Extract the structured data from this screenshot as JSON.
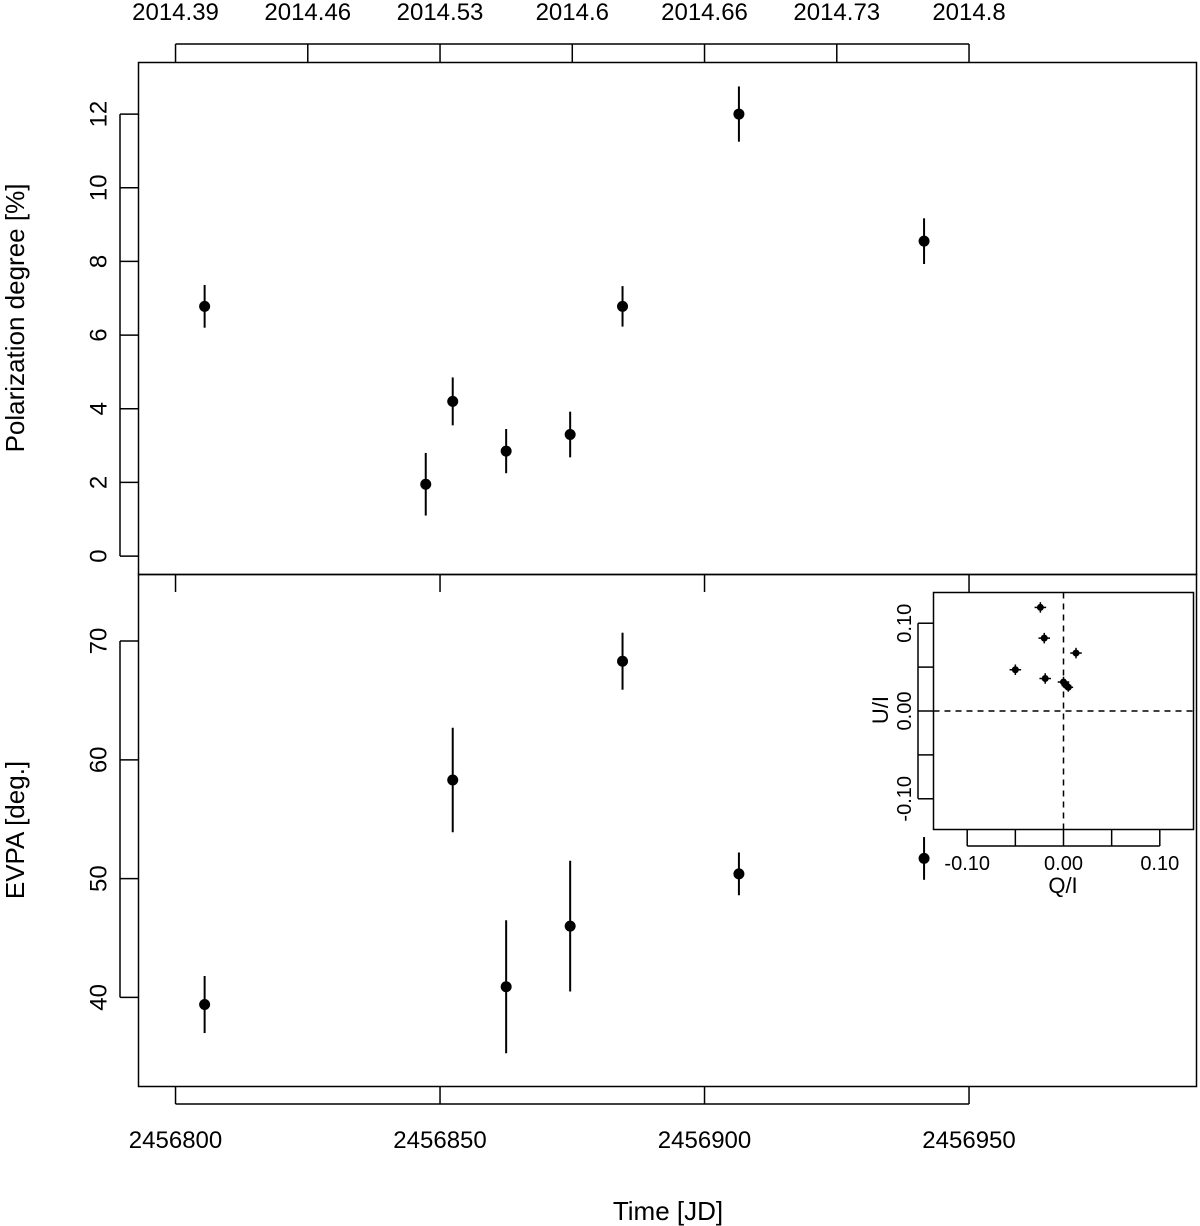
{
  "chart_data": [
    {
      "id": "polarization",
      "type": "scatter",
      "xlabel": "Time [JD]",
      "ylabel": "Polarization degree [%]",
      "xlim": [
        2456793,
        2456993
      ],
      "ylim": [
        -0.5,
        13.4
      ],
      "x_ticks": [
        "2456800",
        "2456850",
        "2456900",
        "2456950"
      ],
      "x_tick_values": [
        2456800,
        2456850,
        2456900,
        2456950
      ],
      "top_ticks": [
        "2014.39",
        "2014.46",
        "2014.53",
        "2014.6",
        "2014.66",
        "2014.73",
        "2014.8"
      ],
      "top_tick_values": [
        2456800,
        2456825,
        2456850,
        2456875,
        2456900,
        2456925,
        2456950
      ],
      "y_ticks": [
        "0",
        "2",
        "4",
        "6",
        "8",
        "10",
        "12"
      ],
      "y_tick_values": [
        0,
        2,
        4,
        6,
        8,
        10,
        12
      ],
      "grid": false,
      "points": [
        {
          "x": 2456805.5,
          "y": 6.78,
          "err": 0.58
        },
        {
          "x": 2456847.3,
          "y": 1.95,
          "err": 0.85
        },
        {
          "x": 2456852.4,
          "y": 4.2,
          "err": 0.65
        },
        {
          "x": 2456862.5,
          "y": 2.85,
          "err": 0.6
        },
        {
          "x": 2456874.6,
          "y": 3.3,
          "err": 0.62
        },
        {
          "x": 2456884.5,
          "y": 6.78,
          "err": 0.55
        },
        {
          "x": 2456906.5,
          "y": 12.0,
          "err": 0.75
        },
        {
          "x": 2456941.5,
          "y": 8.55,
          "err": 0.62
        }
      ]
    },
    {
      "id": "evpa",
      "type": "scatter",
      "xlabel": "Time [JD]",
      "ylabel": "EVPA [deg.]",
      "xlim": [
        2456793,
        2456993
      ],
      "ylim": [
        32.5,
        75.6
      ],
      "y_ticks": [
        "40",
        "50",
        "60",
        "70"
      ],
      "y_tick_values": [
        40,
        50,
        60,
        70
      ],
      "grid": false,
      "points": [
        {
          "x": 2456805.5,
          "y": 39.4,
          "err": 2.4
        },
        {
          "x": 2456852.4,
          "y": 58.3,
          "err": 4.4
        },
        {
          "x": 2456862.5,
          "y": 40.9,
          "err": 5.6
        },
        {
          "x": 2456874.6,
          "y": 46.0,
          "err": 5.5
        },
        {
          "x": 2456884.5,
          "y": 68.3,
          "err": 2.4
        },
        {
          "x": 2456906.5,
          "y": 50.4,
          "err": 1.8
        },
        {
          "x": 2456941.5,
          "y": 51.7,
          "err": 1.8
        }
      ]
    },
    {
      "id": "qu-inset",
      "type": "scatter",
      "xlabel": "Q/I",
      "ylabel": "U/I",
      "xlim": [
        -0.135,
        0.135
      ],
      "ylim": [
        -0.135,
        0.135
      ],
      "x_ticks": [
        "-0.10",
        "0.00",
        "0.10"
      ],
      "x_tick_values": [
        -0.1,
        0.0,
        0.1
      ],
      "y_ticks": [
        "-0.10",
        "0.00",
        "0.10"
      ],
      "y_tick_values": [
        -0.1,
        0.0,
        0.1
      ],
      "grid": false,
      "reference_lines": {
        "x": 0,
        "y": 0,
        "style": "dashed"
      },
      "points": [
        {
          "x": -0.024,
          "y": 0.118,
          "xerr": 0.006,
          "yerr": 0.006
        },
        {
          "x": -0.02,
          "y": 0.083,
          "xerr": 0.006,
          "yerr": 0.006
        },
        {
          "x": 0.013,
          "y": 0.066,
          "xerr": 0.006,
          "yerr": 0.006
        },
        {
          "x": -0.05,
          "y": 0.047,
          "xerr": 0.006,
          "yerr": 0.006
        },
        {
          "x": -0.019,
          "y": 0.037,
          "xerr": 0.006,
          "yerr": 0.006
        },
        {
          "x": 0.0,
          "y": 0.033,
          "xerr": 0.006,
          "yerr": 0.006
        },
        {
          "x": 0.003,
          "y": 0.029,
          "xerr": 0.005,
          "yerr": 0.005
        },
        {
          "x": 0.005,
          "y": 0.027,
          "xerr": 0.005,
          "yerr": 0.005
        }
      ]
    }
  ]
}
